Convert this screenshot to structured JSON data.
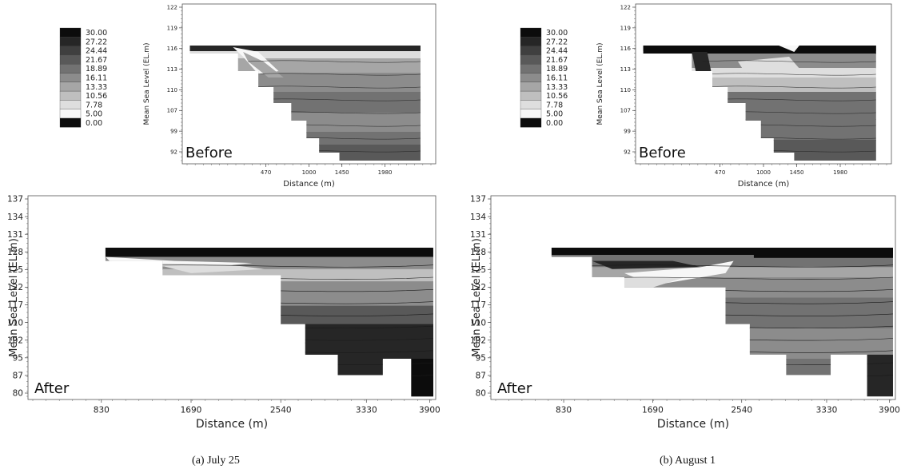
{
  "colors": {
    "scale": [
      "#0c0c0c",
      "#262626",
      "#3f3f3f",
      "#595959",
      "#727272",
      "#8c8c8c",
      "#a6a6a6",
      "#bfbfbf",
      "#dedede",
      "#f7f7f7",
      "#1a1a1a"
    ]
  },
  "chart_data": [
    {
      "type": "heatmap",
      "panel": "a",
      "caption": "(a) July 25",
      "legend": {
        "values": [
          "30.00",
          "27.22",
          "24.44",
          "21.67",
          "18.89",
          "16.11",
          "13.33",
          "10.56",
          "7.78",
          "5.00",
          "0.00"
        ]
      },
      "before": {
        "label": "Before",
        "xlabel": "Distance (m)",
        "ylabel": "Mean Sea Level (EL.m)",
        "xticks": [
          "470",
          "1000",
          "1450",
          "1980"
        ],
        "yticks": [
          "122",
          "119",
          "116",
          "113",
          "110",
          "107",
          "99",
          "92"
        ]
      },
      "after": {
        "label": "After",
        "xlabel": "Distance (m)",
        "ylabel": "Mean Sea Level (EL.m)",
        "xticks": [
          "830",
          "1690",
          "2540",
          "3330",
          "3900"
        ],
        "yticks": [
          "137",
          "134",
          "131",
          "128",
          "125",
          "122",
          "117",
          "110",
          "102",
          "95",
          "87",
          "80"
        ]
      }
    },
    {
      "type": "heatmap",
      "panel": "b",
      "caption": "(b) August 1",
      "legend": {
        "values": [
          "30.00",
          "27.22",
          "24.44",
          "21.67",
          "18.89",
          "16.11",
          "13.33",
          "10.56",
          "7.78",
          "5.00",
          "0.00"
        ]
      },
      "before": {
        "label": "Before",
        "xlabel": "Distance (m)",
        "ylabel": "Mean Sea Level (EL.m)",
        "xticks": [
          "470",
          "1000",
          "1450",
          "1980"
        ],
        "yticks": [
          "122",
          "119",
          "116",
          "113",
          "110",
          "107",
          "99",
          "92"
        ]
      },
      "after": {
        "label": "After",
        "xlabel": "Distance (m)",
        "ylabel": "Mean Sea Level (EL.m)",
        "xticks": [
          "830",
          "1690",
          "2540",
          "3330",
          "3900"
        ],
        "yticks": [
          "137",
          "134",
          "131",
          "128",
          "125",
          "122",
          "117",
          "110",
          "102",
          "95",
          "87",
          "80"
        ]
      }
    }
  ]
}
